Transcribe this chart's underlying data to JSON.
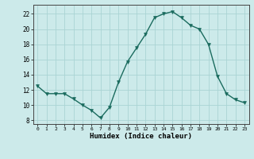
{
  "x": [
    0,
    1,
    2,
    3,
    4,
    5,
    6,
    7,
    8,
    9,
    10,
    11,
    12,
    13,
    14,
    15,
    16,
    17,
    18,
    19,
    20,
    21,
    22,
    23
  ],
  "y": [
    12.5,
    11.5,
    11.5,
    11.5,
    10.8,
    10.0,
    9.3,
    8.3,
    9.7,
    13.0,
    15.7,
    17.5,
    19.3,
    21.5,
    22.0,
    22.3,
    21.5,
    20.5,
    20.0,
    18.0,
    13.8,
    11.5,
    10.7,
    10.3
  ],
  "line_color": "#1a6b5e",
  "marker_color": "#1a6b5e",
  "bg_color": "#cceaea",
  "grid_color": "#aad4d4",
  "xlabel": "Humidex (Indice chaleur)",
  "xlim": [
    -0.5,
    23.5
  ],
  "ylim": [
    7.5,
    23.2
  ],
  "yticks": [
    8,
    10,
    12,
    14,
    16,
    18,
    20,
    22
  ],
  "xticks": [
    0,
    1,
    2,
    3,
    4,
    5,
    6,
    7,
    8,
    9,
    10,
    11,
    12,
    13,
    14,
    15,
    16,
    17,
    18,
    19,
    20,
    21,
    22,
    23
  ]
}
